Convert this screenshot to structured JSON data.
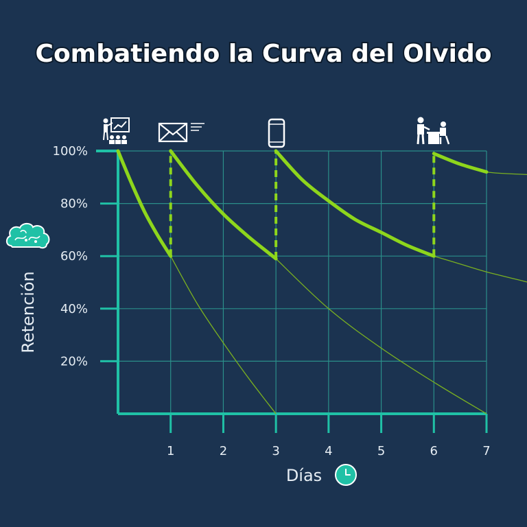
{
  "title": "Combatiendo la Curva del Olvido",
  "icons": {
    "presentation": "presentation-icon",
    "email": "email-icon",
    "mobile": "mobile-phone-icon",
    "meeting": "meeting-icon",
    "brain": "brain-icon",
    "clock": "clock-icon"
  },
  "colors": {
    "background": "#1b3350",
    "axis": "#20c1a6",
    "grid": "#2b8f8a",
    "curve": "#8ed61c",
    "text": "#e6edf3"
  },
  "chart_data": {
    "type": "line",
    "title": "Combatiendo la Curva del Olvido",
    "xlabel": "Días",
    "ylabel": "Retención",
    "xlim": [
      0,
      7
    ],
    "ylim": [
      0,
      100
    ],
    "x_ticks": [
      1,
      2,
      3,
      4,
      5,
      6,
      7
    ],
    "y_ticks": [
      20,
      40,
      60,
      80,
      100
    ],
    "y_tick_labels": [
      "20%",
      "40%",
      "60%",
      "80%",
      "100%"
    ],
    "grid": true,
    "reinforcement_days": [
      1,
      3,
      6
    ],
    "series": [
      {
        "role": "reinforced-retention",
        "points": [
          [
            0,
            100
          ],
          [
            0.25,
            88
          ],
          [
            0.5,
            77
          ],
          [
            0.75,
            68
          ],
          [
            1,
            60
          ]
        ]
      },
      {
        "role": "reinforced-retention",
        "points": [
          [
            1,
            100
          ],
          [
            1.5,
            87
          ],
          [
            2,
            76
          ],
          [
            2.5,
            67
          ],
          [
            3,
            59
          ]
        ]
      },
      {
        "role": "reinforced-retention",
        "points": [
          [
            3,
            100
          ],
          [
            3.5,
            89
          ],
          [
            4,
            81
          ],
          [
            4.5,
            74
          ],
          [
            5,
            69
          ],
          [
            5.5,
            64
          ],
          [
            6,
            60
          ]
        ]
      },
      {
        "role": "reinforced-retention",
        "points": [
          [
            6,
            99
          ],
          [
            6.5,
            95
          ],
          [
            7,
            92
          ]
        ]
      },
      {
        "role": "unreinforced-decay",
        "points": [
          [
            1,
            60
          ],
          [
            1.5,
            42
          ],
          [
            2,
            27
          ],
          [
            2.5,
            13
          ],
          [
            3,
            0
          ]
        ]
      },
      {
        "role": "unreinforced-decay",
        "points": [
          [
            3,
            59
          ],
          [
            4,
            40
          ],
          [
            5,
            25
          ],
          [
            6,
            12
          ],
          [
            7,
            0
          ]
        ]
      },
      {
        "role": "unreinforced-decay",
        "points": [
          [
            6,
            60
          ],
          [
            6.5,
            57
          ],
          [
            7,
            54
          ],
          [
            7.8,
            50
          ]
        ]
      },
      {
        "role": "unreinforced-decay",
        "points": [
          [
            6,
            99
          ],
          [
            6.5,
            95
          ],
          [
            7,
            92
          ],
          [
            7.8,
            91
          ]
        ]
      }
    ]
  }
}
